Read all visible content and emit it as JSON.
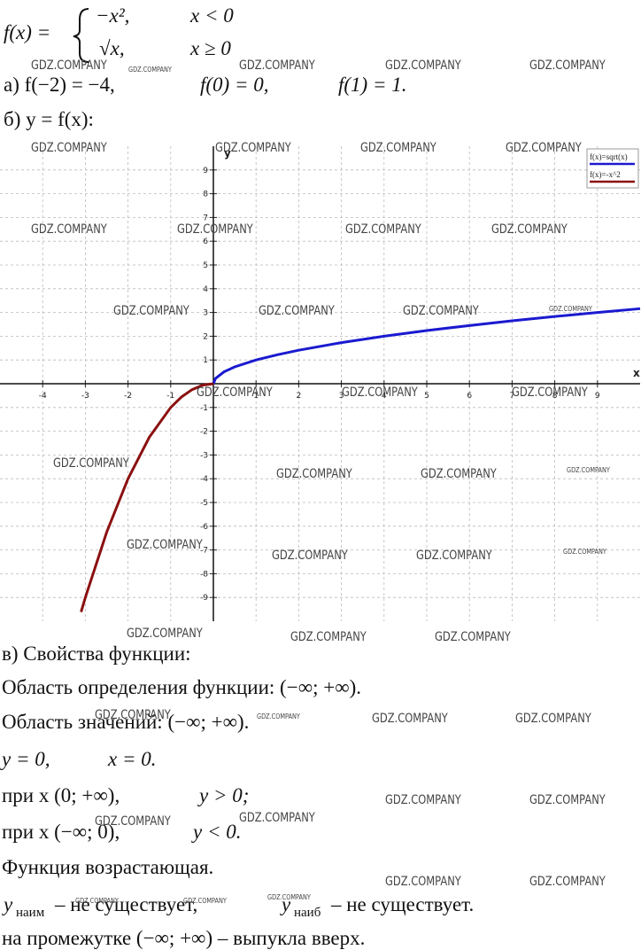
{
  "formula": {
    "lhs": "f(x) =",
    "cases": [
      {
        "expr": "−x²,",
        "cond": "x < 0"
      },
      {
        "expr": "√x,",
        "cond": "x ≥ 0"
      }
    ]
  },
  "part_a": [
    "а) f(−2) = −4,",
    "f(0) = 0,",
    "f(1) = 1."
  ],
  "part_b": "б) y = f(x):",
  "chart_data": {
    "type": "line",
    "x_label": "x",
    "y_label": "y",
    "x": [
      -3.1,
      -3,
      -2.5,
      -2,
      -1.5,
      -1,
      -0.75,
      -0.5,
      -0.25,
      0,
      0.05,
      0.25,
      0.5,
      1,
      1.5,
      2,
      3,
      4,
      5,
      6,
      7,
      8,
      9,
      10
    ],
    "series": [
      {
        "name": "f(x)=sqrt(x)",
        "color": "#1a1ad0",
        "values": [
          null,
          null,
          null,
          null,
          null,
          null,
          null,
          null,
          null,
          0,
          0.22,
          0.5,
          0.71,
          1,
          1.22,
          1.41,
          1.73,
          2,
          2.24,
          2.45,
          2.65,
          2.83,
          3,
          3.16
        ]
      },
      {
        "name": "f(x)=-x^2",
        "color": "#8b1010",
        "values": [
          -9.61,
          -9,
          -6.25,
          -4,
          -2.25,
          -1,
          -0.56,
          -0.25,
          -0.06,
          0,
          null,
          null,
          null,
          null,
          null,
          null,
          null,
          null,
          null,
          null,
          null,
          null,
          null,
          null
        ]
      }
    ],
    "xlim": [
      -5,
      10
    ],
    "ylim": [
      -10,
      10
    ],
    "xticks": [
      -4,
      -3,
      -2,
      -1,
      1,
      2,
      3,
      4,
      5,
      6,
      7,
      8,
      9
    ],
    "yticks": [
      -9,
      -8,
      -7,
      -6,
      -5,
      -4,
      -3,
      -2,
      -1,
      1,
      2,
      3,
      4,
      5,
      6,
      7,
      8,
      9
    ],
    "grid": true,
    "legend": "top-right"
  },
  "part_c": {
    "title": "в) Свойства функции:",
    "domain": "Область определения функции: (−∞; +∞).",
    "range": "Область значений: (−∞; +∞).",
    "zeros": [
      "y = 0,",
      "x = 0."
    ],
    "positive": [
      "при x (0; +∞),",
      "y > 0;"
    ],
    "negative": [
      "при x (−∞; 0),",
      "y < 0."
    ],
    "monotonic": "Функция возрастающая.",
    "extrema": [
      {
        "var": "y",
        "sub": "наим",
        "text": "– не существует,"
      },
      {
        "var": "y",
        "sub": "наиб",
        "text": "– не существует."
      }
    ],
    "convexity": "на промежутке (−∞; +∞) – выпукла вверх."
  },
  "watermark": "GDZ.COMPANY"
}
